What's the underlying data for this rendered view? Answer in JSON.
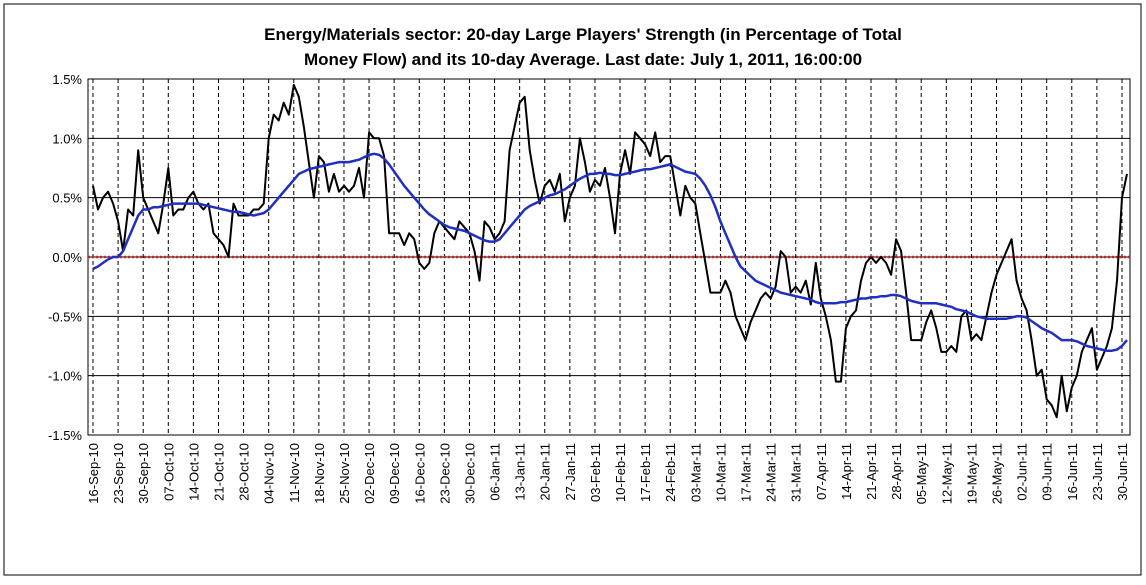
{
  "chart_data": {
    "type": "line",
    "title": [
      "Energy/Materials sector: 20-day Large Players' Strength (in Percentage of Total",
      "Money Flow) and its 10-day Average. Last date: July 1, 2011, 16:00:00"
    ],
    "categories": [
      "16-Sep-10",
      null,
      null,
      null,
      null,
      "23-Sep-10",
      null,
      null,
      null,
      null,
      "30-Sep-10",
      null,
      null,
      null,
      null,
      "07-Oct-10",
      null,
      null,
      null,
      null,
      "14-Oct-10",
      null,
      null,
      null,
      null,
      "21-Oct-10",
      null,
      null,
      null,
      null,
      "28-Oct-10",
      null,
      null,
      null,
      null,
      "04-Nov-10",
      null,
      null,
      null,
      null,
      "11-Nov-10",
      null,
      null,
      null,
      null,
      "18-Nov-10",
      null,
      null,
      null,
      null,
      "25-Nov-10",
      null,
      null,
      null,
      null,
      "02-Dec-10",
      null,
      null,
      null,
      null,
      "09-Dec-10",
      null,
      null,
      null,
      null,
      "16-Dec-10",
      null,
      null,
      null,
      null,
      "23-Dec-10",
      null,
      null,
      null,
      null,
      "30-Dec-10",
      null,
      null,
      null,
      null,
      "06-Jan-11",
      null,
      null,
      null,
      null,
      "13-Jan-11",
      null,
      null,
      null,
      null,
      "20-Jan-11",
      null,
      null,
      null,
      null,
      "27-Jan-11",
      null,
      null,
      null,
      null,
      "03-Feb-11",
      null,
      null,
      null,
      null,
      "10-Feb-11",
      null,
      null,
      null,
      null,
      "17-Feb-11",
      null,
      null,
      null,
      null,
      "24-Feb-11",
      null,
      null,
      null,
      null,
      "03-Mar-11",
      null,
      null,
      null,
      null,
      "10-Mar-11",
      null,
      null,
      null,
      null,
      "17-Mar-11",
      null,
      null,
      null,
      null,
      "24-Mar-11",
      null,
      null,
      null,
      null,
      "31-Mar-11",
      null,
      null,
      null,
      null,
      "07-Apr-11",
      null,
      null,
      null,
      null,
      "14-Apr-11",
      null,
      null,
      null,
      null,
      "21-Apr-11",
      null,
      null,
      null,
      null,
      "28-Apr-11",
      null,
      null,
      null,
      null,
      "05-May-11",
      null,
      null,
      null,
      null,
      "12-May-11",
      null,
      null,
      null,
      null,
      "19-May-11",
      null,
      null,
      null,
      null,
      "26-May-11",
      null,
      null,
      null,
      null,
      "02-Jun-11",
      null,
      null,
      null,
      null,
      "09-Jun-11",
      null,
      null,
      null,
      null,
      "16-Jun-11",
      null,
      null,
      null,
      null,
      "23-Jun-11",
      null,
      null,
      null,
      null,
      "30-Jun-11",
      null
    ],
    "series": [
      {
        "color": "#000000",
        "values": [
          0.6,
          0.4,
          0.5,
          0.55,
          0.45,
          0.3,
          0.05,
          0.4,
          0.35,
          0.9,
          0.5,
          0.4,
          0.3,
          0.2,
          0.45,
          0.75,
          0.35,
          0.4,
          0.4,
          0.5,
          0.55,
          0.45,
          0.4,
          0.45,
          0.2,
          0.15,
          0.1,
          0.0,
          0.45,
          0.35,
          0.35,
          0.35,
          0.4,
          0.4,
          0.45,
          1.0,
          1.2,
          1.15,
          1.3,
          1.2,
          1.45,
          1.35,
          1.1,
          0.8,
          0.5,
          0.85,
          0.8,
          0.55,
          0.7,
          0.55,
          0.6,
          0.55,
          0.6,
          0.75,
          0.5,
          1.05,
          1.0,
          1.0,
          0.85,
          0.2,
          0.2,
          0.2,
          0.1,
          0.2,
          0.15,
          -0.05,
          -0.1,
          -0.05,
          0.2,
          0.3,
          0.25,
          0.2,
          0.15,
          0.3,
          0.25,
          0.2,
          0.05,
          -0.2,
          0.3,
          0.25,
          0.15,
          0.2,
          0.3,
          0.9,
          1.1,
          1.3,
          1.35,
          0.9,
          0.65,
          0.45,
          0.6,
          0.65,
          0.55,
          0.7,
          0.3,
          0.5,
          0.6,
          1.0,
          0.8,
          0.55,
          0.65,
          0.6,
          0.75,
          0.5,
          0.2,
          0.7,
          0.9,
          0.7,
          1.05,
          1.0,
          0.95,
          0.85,
          1.05,
          0.8,
          0.85,
          0.85,
          0.6,
          0.35,
          0.6,
          0.5,
          0.45,
          0.2,
          -0.05,
          -0.3,
          -0.3,
          -0.3,
          -0.2,
          -0.3,
          -0.5,
          -0.6,
          -0.7,
          -0.55,
          -0.45,
          -0.35,
          -0.3,
          -0.35,
          -0.25,
          0.05,
          0.0,
          -0.3,
          -0.25,
          -0.3,
          -0.2,
          -0.4,
          -0.05,
          -0.35,
          -0.5,
          -0.7,
          -1.05,
          -1.05,
          -0.6,
          -0.5,
          -0.45,
          -0.2,
          -0.05,
          0.0,
          -0.05,
          0.0,
          -0.05,
          -0.15,
          0.15,
          0.05,
          -0.3,
          -0.7,
          -0.7,
          -0.7,
          -0.55,
          -0.45,
          -0.6,
          -0.8,
          -0.8,
          -0.75,
          -0.8,
          -0.5,
          -0.45,
          -0.7,
          -0.65,
          -0.7,
          -0.5,
          -0.3,
          -0.15,
          -0.05,
          0.05,
          0.15,
          -0.2,
          -0.35,
          -0.45,
          -0.7,
          -1.0,
          -0.95,
          -1.2,
          -1.25,
          -1.35,
          -1.0,
          -1.3,
          -1.1,
          -1.0,
          -0.8,
          -0.7,
          -0.6,
          -0.95,
          -0.85,
          -0.75,
          -0.6,
          -0.2,
          0.5,
          0.7
        ]
      },
      {
        "color": "#1f2fbf",
        "values": [
          -0.1,
          -0.08,
          -0.05,
          -0.02,
          0.0,
          0.0,
          0.05,
          0.15,
          0.25,
          0.35,
          0.4,
          0.4,
          0.42,
          0.42,
          0.43,
          0.44,
          0.45,
          0.45,
          0.45,
          0.45,
          0.45,
          0.45,
          0.44,
          0.43,
          0.42,
          0.41,
          0.4,
          0.39,
          0.38,
          0.38,
          0.37,
          0.36,
          0.35,
          0.36,
          0.37,
          0.4,
          0.45,
          0.5,
          0.55,
          0.6,
          0.65,
          0.7,
          0.72,
          0.74,
          0.75,
          0.76,
          0.77,
          0.78,
          0.79,
          0.8,
          0.8,
          0.8,
          0.81,
          0.82,
          0.84,
          0.86,
          0.87,
          0.86,
          0.83,
          0.78,
          0.72,
          0.66,
          0.6,
          0.55,
          0.5,
          0.45,
          0.4,
          0.36,
          0.33,
          0.3,
          0.27,
          0.25,
          0.24,
          0.23,
          0.22,
          0.2,
          0.18,
          0.16,
          0.14,
          0.13,
          0.13,
          0.15,
          0.2,
          0.25,
          0.3,
          0.35,
          0.4,
          0.43,
          0.45,
          0.47,
          0.5,
          0.52,
          0.53,
          0.55,
          0.57,
          0.6,
          0.63,
          0.66,
          0.68,
          0.7,
          0.7,
          0.71,
          0.7,
          0.7,
          0.69,
          0.69,
          0.7,
          0.71,
          0.72,
          0.73,
          0.74,
          0.74,
          0.75,
          0.76,
          0.77,
          0.78,
          0.76,
          0.74,
          0.72,
          0.71,
          0.7,
          0.66,
          0.6,
          0.52,
          0.42,
          0.3,
          0.2,
          0.1,
          0.0,
          -0.08,
          -0.12,
          -0.16,
          -0.2,
          -0.22,
          -0.24,
          -0.26,
          -0.28,
          -0.3,
          -0.31,
          -0.32,
          -0.33,
          -0.34,
          -0.35,
          -0.36,
          -0.38,
          -0.39,
          -0.39,
          -0.39,
          -0.39,
          -0.38,
          -0.38,
          -0.37,
          -0.36,
          -0.35,
          -0.35,
          -0.34,
          -0.34,
          -0.33,
          -0.33,
          -0.32,
          -0.32,
          -0.33,
          -0.35,
          -0.37,
          -0.38,
          -0.39,
          -0.39,
          -0.39,
          -0.39,
          -0.4,
          -0.41,
          -0.42,
          -0.44,
          -0.45,
          -0.46,
          -0.48,
          -0.5,
          -0.51,
          -0.52,
          -0.52,
          -0.52,
          -0.52,
          -0.52,
          -0.51,
          -0.5,
          -0.5,
          -0.51,
          -0.54,
          -0.57,
          -0.6,
          -0.62,
          -0.64,
          -0.67,
          -0.7,
          -0.7,
          -0.7,
          -0.71,
          -0.73,
          -0.75,
          -0.76,
          -0.77,
          -0.78,
          -0.79,
          -0.79,
          -0.78,
          -0.75,
          -0.7
        ]
      }
    ],
    "ylim": [
      -1.5,
      1.5
    ],
    "yticks": [
      {
        "value": -1.5,
        "label": "-1.5%"
      },
      {
        "value": -1.0,
        "label": "-1.0%"
      },
      {
        "value": -0.5,
        "label": "-0.5%"
      },
      {
        "value": 0,
        "label": "0.0%"
      },
      {
        "value": 0.5,
        "label": "0.5%"
      },
      {
        "value": 1.0,
        "label": "1.0%"
      },
      {
        "value": 1.5,
        "label": "1.5%"
      }
    ],
    "grid": true,
    "reference_line": {
      "value": 0,
      "color": "#d02020"
    }
  }
}
